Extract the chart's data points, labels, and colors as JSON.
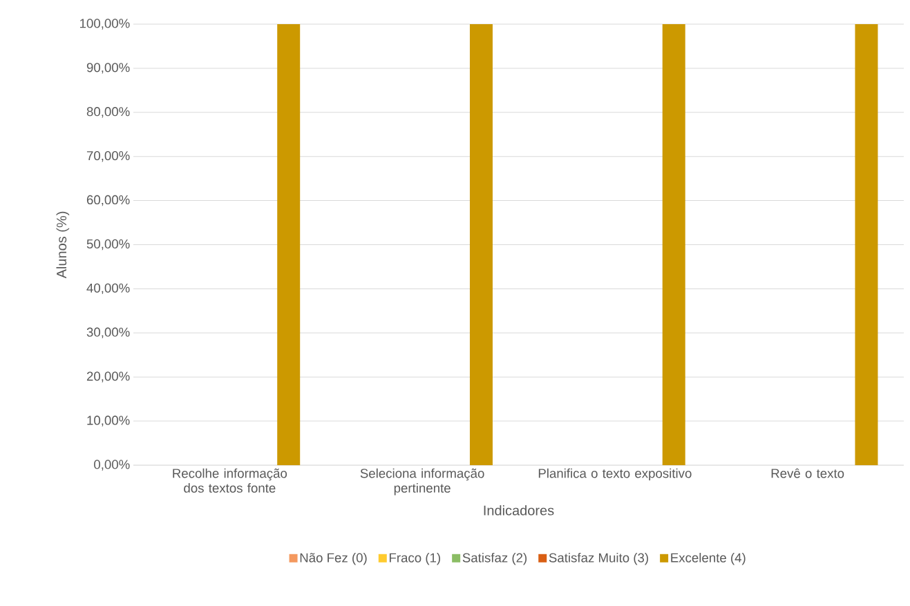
{
  "chart_data": {
    "type": "bar",
    "xlabel": "Indicadores",
    "ylabel": "Alunos (%)",
    "categories": [
      "Recolhe informação dos textos fonte",
      "Seleciona informação pertinente",
      "Planifica o texto expositivo",
      "Revê o texto"
    ],
    "series": [
      {
        "name": "Não Fez (0)",
        "color": "#f4995f",
        "values": [
          0,
          0,
          0,
          0
        ]
      },
      {
        "name": "Fraco (1)",
        "color": "#ffcb2f",
        "values": [
          0,
          0,
          0,
          0
        ]
      },
      {
        "name": "Satisfaz (2)",
        "color": "#8bbd64",
        "values": [
          0,
          0,
          0,
          0
        ]
      },
      {
        "name": "Satisfaz Muito (3)",
        "color": "#d95f14",
        "values": [
          0,
          0,
          0,
          0
        ]
      },
      {
        "name": "Excelente (4)",
        "color": "#cc9900",
        "values": [
          100,
          100,
          100,
          100
        ]
      }
    ],
    "ylim": [
      0,
      100
    ],
    "yticks": [
      {
        "value": 0,
        "label": "0,00%"
      },
      {
        "value": 10,
        "label": "10,00%"
      },
      {
        "value": 20,
        "label": "20,00%"
      },
      {
        "value": 30,
        "label": "30,00%"
      },
      {
        "value": 40,
        "label": "40,00%"
      },
      {
        "value": 50,
        "label": "50,00%"
      },
      {
        "value": 60,
        "label": "60,00%"
      },
      {
        "value": 70,
        "label": "70,00%"
      },
      {
        "value": 80,
        "label": "80,00%"
      },
      {
        "value": 90,
        "label": "90,00%"
      },
      {
        "value": 100,
        "label": "100,00%"
      }
    ],
    "grid": "y",
    "legend": "bottom"
  }
}
